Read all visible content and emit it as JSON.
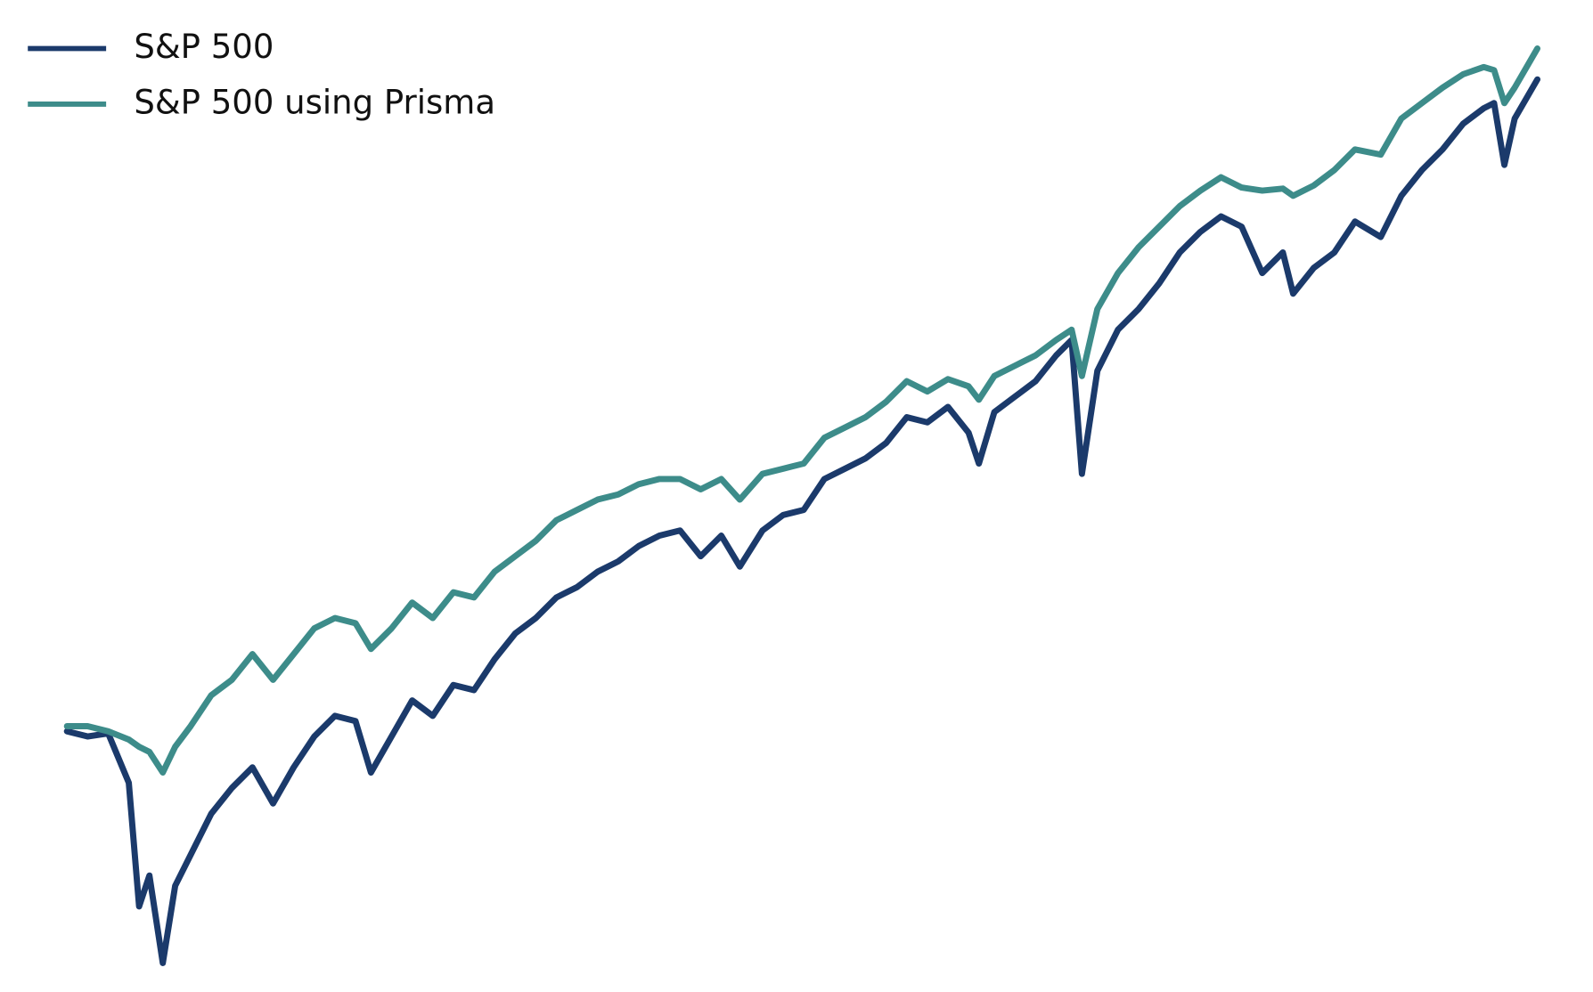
{
  "chart_data": {
    "type": "line",
    "x": [
      0,
      20,
      40,
      60,
      70,
      80,
      93,
      105,
      120,
      140,
      160,
      180,
      200,
      220,
      240,
      260,
      280,
      295,
      315,
      335,
      355,
      375,
      395,
      415,
      435,
      455,
      475,
      495,
      515,
      535,
      555,
      575,
      595,
      615,
      635,
      653,
      675,
      695,
      715,
      735,
      755,
      775,
      795,
      815,
      835,
      855,
      875,
      885,
      900,
      920,
      940,
      960,
      975,
      985,
      1000,
      1020,
      1040,
      1060,
      1080,
      1100,
      1120,
      1140,
      1160,
      1180,
      1190,
      1210,
      1230,
      1250,
      1275,
      1295,
      1315,
      1335,
      1355,
      1375,
      1385,
      1395,
      1405,
      1427
    ],
    "series": [
      {
        "name": "S&P 500",
        "color": "#1b3a6b",
        "values": [
          250,
          245,
          248,
          200,
          80,
          110,
          25,
          100,
          130,
          170,
          195,
          215,
          180,
          215,
          245,
          265,
          260,
          210,
          245,
          280,
          265,
          295,
          290,
          320,
          345,
          360,
          380,
          390,
          405,
          415,
          430,
          440,
          445,
          420,
          440,
          410,
          445,
          460,
          465,
          495,
          505,
          515,
          530,
          555,
          550,
          565,
          540,
          510,
          560,
          575,
          590,
          615,
          630,
          500,
          600,
          640,
          660,
          685,
          715,
          735,
          750,
          740,
          695,
          715,
          675,
          700,
          715,
          745,
          730,
          770,
          795,
          815,
          840,
          855,
          860,
          800,
          845,
          883
        ]
      },
      {
        "name": "S&P 500 using Prisma",
        "color": "#3d8c8a",
        "values": [
          255,
          255,
          250,
          242,
          235,
          230,
          210,
          235,
          255,
          285,
          300,
          325,
          300,
          325,
          350,
          360,
          355,
          330,
          350,
          375,
          360,
          385,
          380,
          405,
          420,
          435,
          455,
          465,
          475,
          480,
          490,
          495,
          495,
          485,
          495,
          475,
          500,
          505,
          510,
          535,
          545,
          555,
          570,
          590,
          580,
          592,
          585,
          572,
          595,
          605,
          615,
          630,
          640,
          595,
          660,
          695,
          720,
          740,
          760,
          775,
          788,
          778,
          775,
          777,
          770,
          780,
          795,
          815,
          810,
          845,
          860,
          875,
          888,
          895,
          892,
          860,
          875,
          913
        ]
      }
    ],
    "xlim": [
      0,
      1427
    ],
    "ylim": [
      0,
      960
    ],
    "legend": "upper left"
  }
}
